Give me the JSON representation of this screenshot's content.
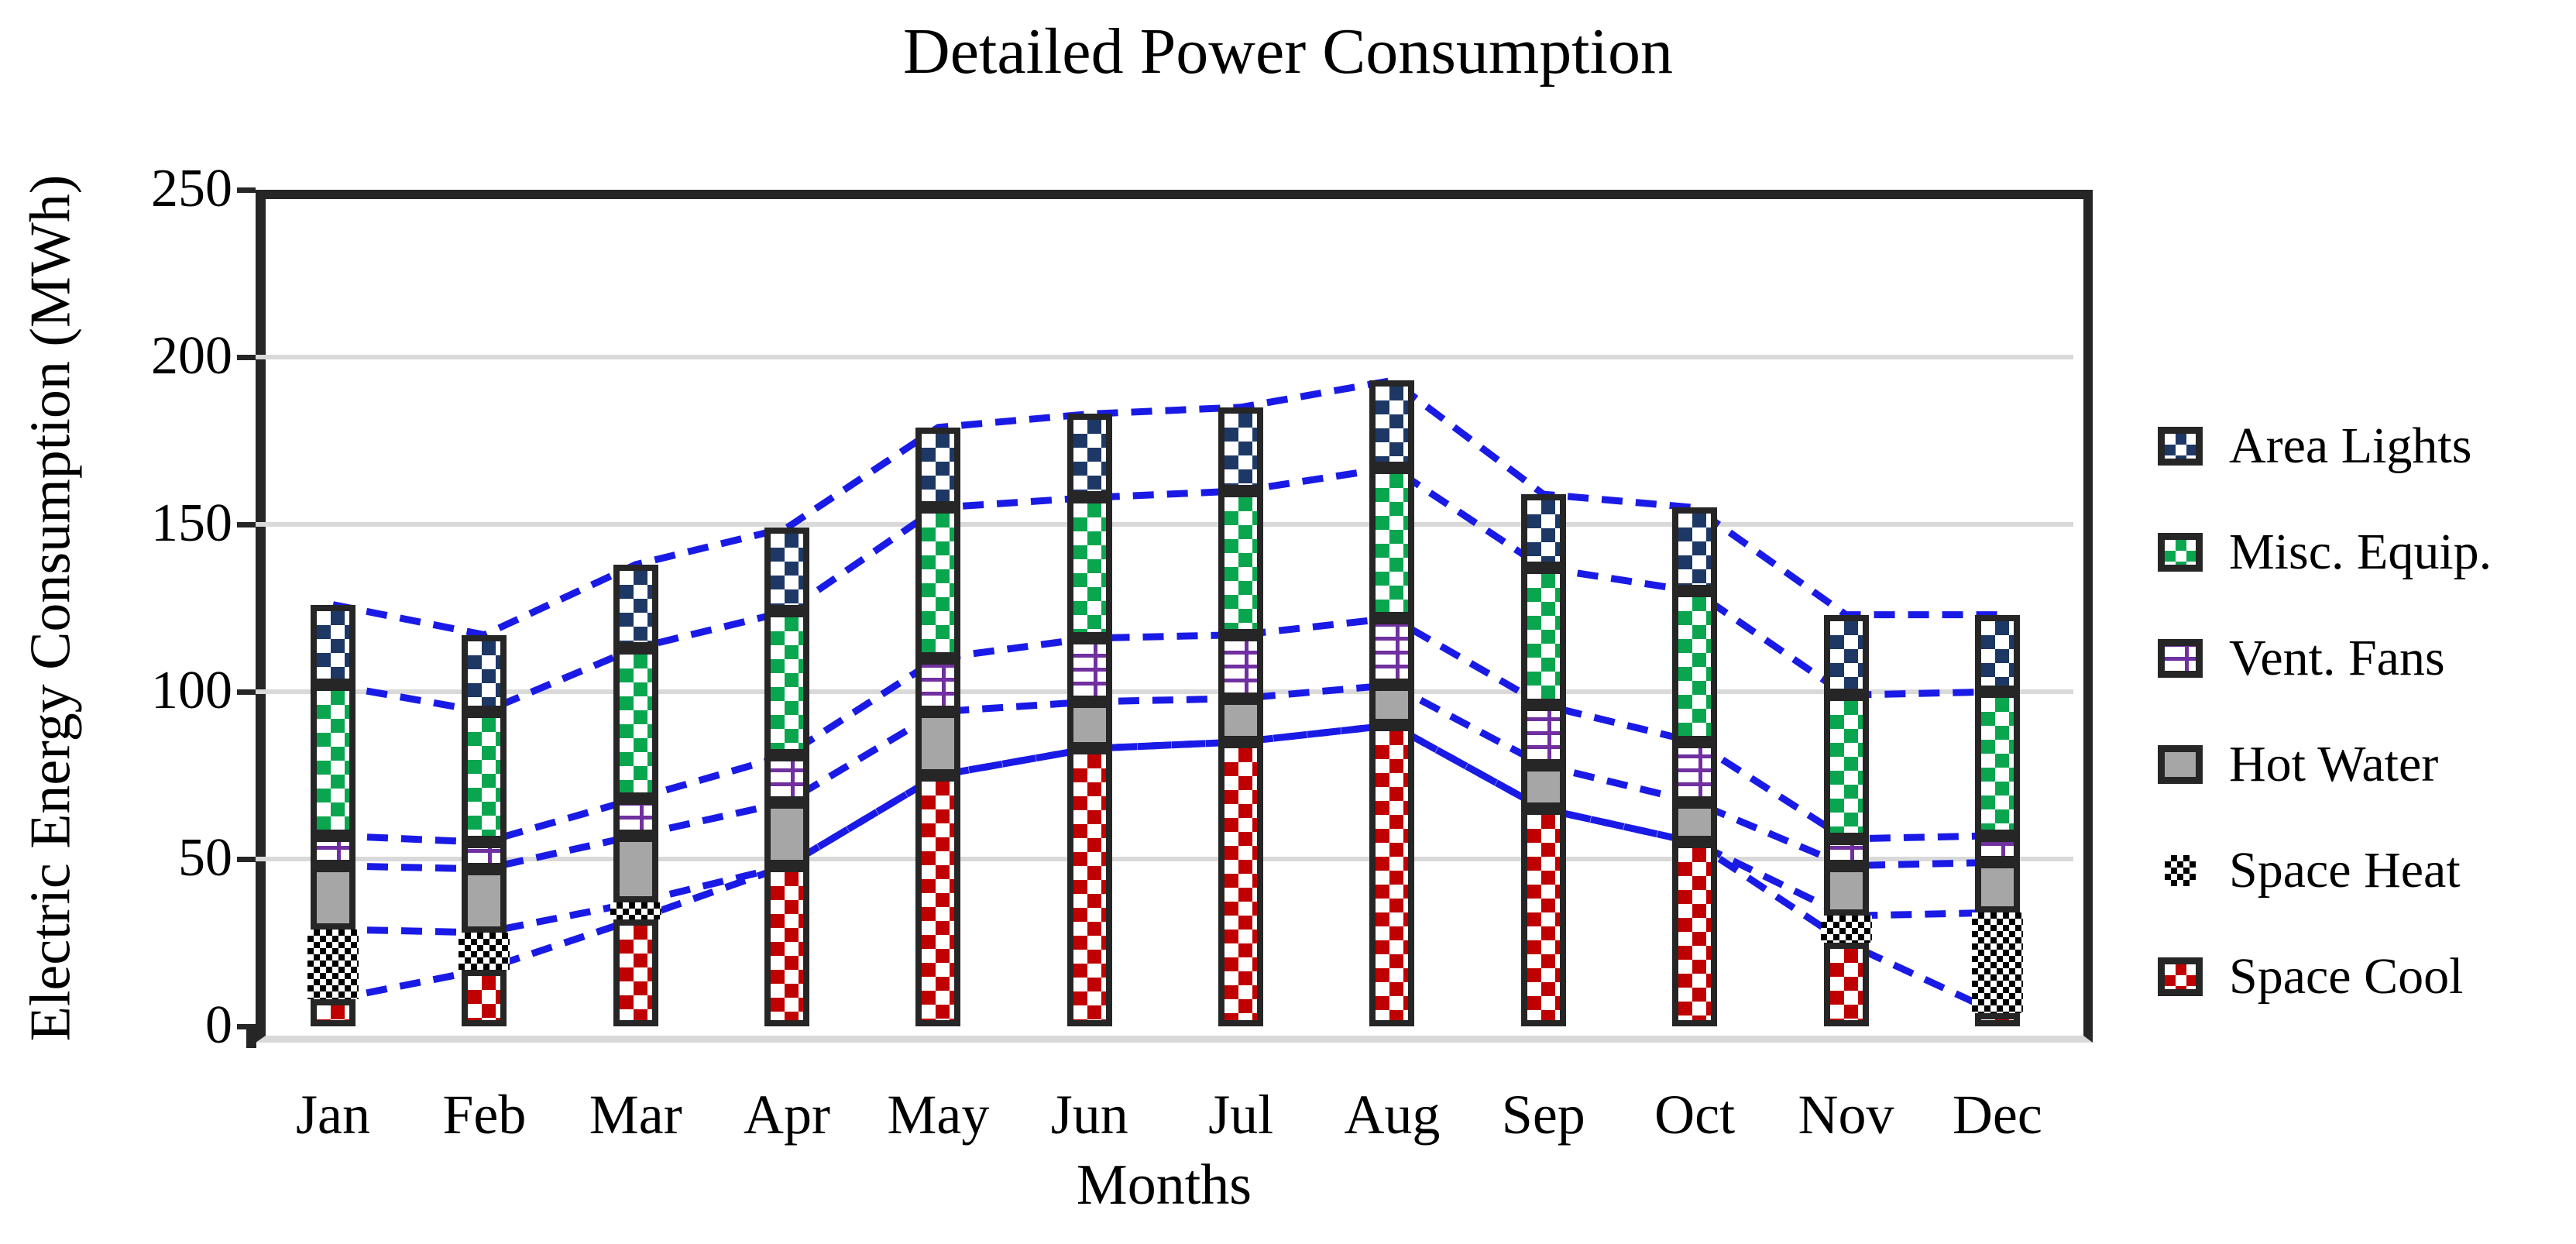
{
  "title": "Detailed Power Consumption",
  "axes": {
    "x_label": "Months",
    "y_label": "Electric Energy Consumption (MWh)"
  },
  "chart_data": {
    "type": "bar",
    "stacked": true,
    "title": "Detailed Power Consumption",
    "xlabel": "Months",
    "ylabel": "Electric Energy Consumption (MWh)",
    "ylim": [
      0,
      250
    ],
    "ytick_step": 50,
    "yticks": [
      250,
      200,
      150,
      100,
      50,
      0
    ],
    "grid": true,
    "legend_position": "right",
    "categories": [
      "Jan",
      "Feb",
      "Mar",
      "Apr",
      "May",
      "Jun",
      "Jul",
      "Aug",
      "Sep",
      "Oct",
      "Nov",
      "Dec"
    ],
    "series": [
      {
        "name": "Space Cool",
        "color": "#C00000",
        "pattern": "checker",
        "values": [
          8,
          17,
          32,
          48,
          75,
          83,
          85,
          90,
          65,
          55,
          25,
          4
        ]
      },
      {
        "name": "Space Heat",
        "color": "#000000",
        "pattern": "fine-checker",
        "values": [
          21,
          11,
          5,
          0,
          0,
          0,
          0,
          0,
          0,
          0,
          8,
          30
        ]
      },
      {
        "name": "Hot Water",
        "color": "#A6A6A6",
        "pattern": "solid",
        "values": [
          19,
          19,
          20,
          19,
          19,
          14,
          13,
          12,
          13,
          12,
          15,
          15
        ]
      },
      {
        "name": "Vent. Fans",
        "color": "#7030A0",
        "pattern": "brick",
        "values": [
          9,
          8,
          11,
          14,
          16,
          19,
          19,
          20,
          18,
          18,
          8,
          8
        ]
      },
      {
        "name": "Misc. Equip.",
        "color": "#0AA64F",
        "pattern": "checker",
        "values": [
          45,
          39,
          45,
          43,
          45,
          42,
          43,
          45,
          41,
          45,
          43,
          43
        ]
      },
      {
        "name": "Area Lights",
        "color": "#1E3866",
        "pattern": "checker",
        "values": [
          24,
          23,
          25,
          25,
          24,
          25,
          25,
          26,
          22,
          25,
          24,
          23
        ]
      }
    ],
    "totals": [
      126,
      117,
      138,
      149,
      179,
      183,
      185,
      193,
      159,
      155,
      123,
      123
    ],
    "legend_order_top_to_bottom": [
      "Area Lights",
      "Misc. Equip.",
      "Vent. Fans",
      "Hot Water",
      "Space Heat",
      "Space Cool"
    ],
    "connector_lines": {
      "style": "dashed",
      "color": "#1A1AE6",
      "description": "Blue dashed lines joining the cumulative stack boundaries of adjacent monthly bars"
    }
  },
  "colors": {
    "segment_border": "#262626",
    "gridline": "#D9D9D9",
    "dashed_line": "#1A1AE6",
    "background": "#FFFFFF",
    "text": "#000000"
  }
}
